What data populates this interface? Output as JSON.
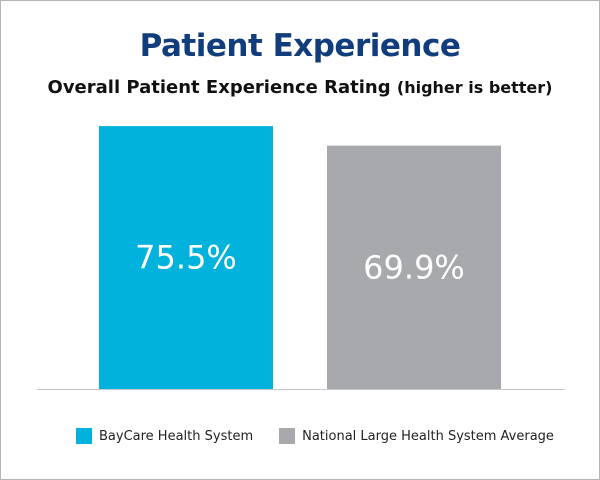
{
  "chart_data": {
    "type": "bar",
    "title": "Patient Experience",
    "subtitle": "Overall Patient Experience Rating",
    "subtitle_note": "(higher is better)",
    "categories": [
      "BayCare Health System",
      "National Large Health System Average"
    ],
    "values": [
      75.5,
      69.9
    ],
    "data_labels": [
      "75.5%",
      "69.9%"
    ],
    "colors": [
      "#00b2dc",
      "#a7a9ac"
    ],
    "ylim": [
      0,
      83
    ],
    "grid": false,
    "legend": "bottom",
    "legend_entries": [
      "BayCare Health System",
      "National Large Health System Average"
    ]
  }
}
